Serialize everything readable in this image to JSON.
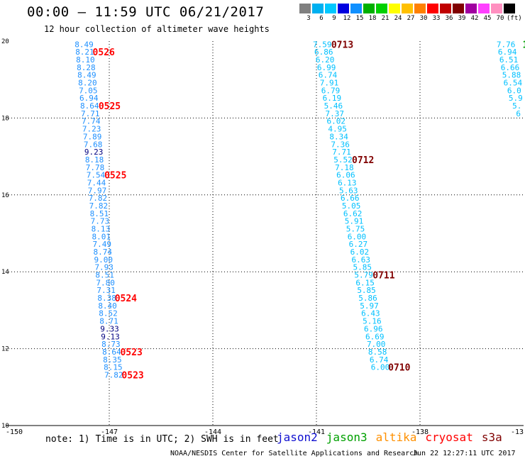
{
  "title": "00:00 – 11:59 UTC 06/21/2017",
  "subtitle": "12 hour collection of altimeter wave heights",
  "color_scale": {
    "labels": [
      "3",
      "6",
      "9",
      "12",
      "15",
      "18",
      "21",
      "24",
      "27",
      "30",
      "33",
      "36",
      "39",
      "42",
      "45",
      "70",
      "(ft)"
    ],
    "colors": [
      "#808080",
      "#00b0f0",
      "#00c8ff",
      "#0000e0",
      "#1090ff",
      "#00b000",
      "#00d000",
      "#ffff00",
      "#ffc000",
      "#ff8000",
      "#ff0000",
      "#c00000",
      "#800000",
      "#a000a0",
      "#ff40ff",
      "#ff90c0",
      "#000000"
    ]
  },
  "note": "note: 1) Time is in UTC; 2) SWH is in feet",
  "legend": [
    {
      "name": "jason2",
      "color": "#1010d0"
    },
    {
      "name": "jason3",
      "color": "#00a000"
    },
    {
      "name": "altika",
      "color": "#ff9000"
    },
    {
      "name": "cryosat",
      "color": "#ff0000"
    },
    {
      "name": "s3a",
      "color": "#800000"
    }
  ],
  "credit": "NOAA/NESDIS Center for Satellite Applications and Research",
  "timestamp": "Jun 22 12:27:11 UTC 2017",
  "map": {
    "lon_range": [
      -150,
      -135
    ],
    "lat_range": [
      10,
      20
    ],
    "lon_ticks": [
      "-150",
      "-147",
      "-144",
      "-141",
      "-138",
      "-13"
    ],
    "lat_ticks": [
      "20",
      "18",
      "16",
      "14",
      "12",
      "10"
    ],
    "grid": true
  },
  "tracks": [
    {
      "id": "track-a",
      "points": [
        {
          "lon": -147.73,
          "lat": 19.92,
          "swh": "8.49",
          "color": "#1e90ff"
        },
        {
          "lon": -147.71,
          "lat": 19.72,
          "swh": "8.21",
          "color": "#1e90ff"
        },
        {
          "lon": -147.69,
          "lat": 19.52,
          "swh": "8.10",
          "color": "#1e90ff"
        },
        {
          "lon": -147.67,
          "lat": 19.32,
          "swh": "8.28",
          "color": "#1e90ff"
        },
        {
          "lon": -147.65,
          "lat": 19.12,
          "swh": "8.49",
          "color": "#1e90ff"
        },
        {
          "lon": -147.63,
          "lat": 18.92,
          "swh": "8.20",
          "color": "#1e90ff"
        },
        {
          "lon": -147.61,
          "lat": 18.72,
          "swh": "7.05",
          "color": "#1e90ff"
        },
        {
          "lon": -147.59,
          "lat": 18.52,
          "swh": "6.94",
          "color": "#1e90ff"
        },
        {
          "lon": -147.57,
          "lat": 18.32,
          "swh": "8.64",
          "color": "#1e90ff"
        },
        {
          "lon": -147.55,
          "lat": 18.12,
          "swh": "7.71",
          "color": "#1e90ff"
        },
        {
          "lon": -147.53,
          "lat": 17.92,
          "swh": "7.74",
          "color": "#1e90ff"
        },
        {
          "lon": -147.51,
          "lat": 17.72,
          "swh": "7.23",
          "color": "#1e90ff"
        },
        {
          "lon": -147.49,
          "lat": 17.52,
          "swh": "7.89",
          "color": "#1e90ff"
        },
        {
          "lon": -147.47,
          "lat": 17.32,
          "swh": "7.68",
          "color": "#1e90ff"
        },
        {
          "lon": -147.45,
          "lat": 17.12,
          "swh": "9.23",
          "color": "#000080"
        },
        {
          "lon": -147.43,
          "lat": 16.92,
          "swh": "8.18",
          "color": "#1e90ff"
        },
        {
          "lon": -147.41,
          "lat": 16.72,
          "swh": "7.78",
          "color": "#1e90ff"
        },
        {
          "lon": -147.39,
          "lat": 16.52,
          "swh": "7.54",
          "color": "#1e90ff"
        },
        {
          "lon": -147.37,
          "lat": 16.32,
          "swh": "7.44",
          "color": "#1e90ff"
        },
        {
          "lon": -147.35,
          "lat": 16.12,
          "swh": "7.97",
          "color": "#1e90ff"
        },
        {
          "lon": -147.33,
          "lat": 15.92,
          "swh": "7.82",
          "color": "#1e90ff"
        },
        {
          "lon": -147.31,
          "lat": 15.72,
          "swh": "7.82",
          "color": "#1e90ff"
        },
        {
          "lon": -147.29,
          "lat": 15.52,
          "swh": "8.51",
          "color": "#1e90ff"
        },
        {
          "lon": -147.27,
          "lat": 15.32,
          "swh": "7.73",
          "color": "#1e90ff"
        },
        {
          "lon": -147.25,
          "lat": 15.12,
          "swh": "8.13",
          "color": "#1e90ff"
        },
        {
          "lon": -147.23,
          "lat": 14.92,
          "swh": "8.01",
          "color": "#1e90ff"
        },
        {
          "lon": -147.21,
          "lat": 14.72,
          "swh": "7.49",
          "color": "#1e90ff"
        },
        {
          "lon": -147.19,
          "lat": 14.52,
          "swh": "8.74",
          "color": "#1e90ff"
        },
        {
          "lon": -147.17,
          "lat": 14.32,
          "swh": "9.00",
          "color": "#1e90ff"
        },
        {
          "lon": -147.15,
          "lat": 14.12,
          "swh": "7.93",
          "color": "#1e90ff"
        },
        {
          "lon": -147.13,
          "lat": 13.92,
          "swh": "8.51",
          "color": "#1e90ff"
        },
        {
          "lon": -147.11,
          "lat": 13.72,
          "swh": "7.80",
          "color": "#1e90ff"
        },
        {
          "lon": -147.09,
          "lat": 13.52,
          "swh": "7.31",
          "color": "#1e90ff"
        },
        {
          "lon": -147.07,
          "lat": 13.32,
          "swh": "8.38",
          "color": "#1e90ff"
        },
        {
          "lon": -147.05,
          "lat": 13.12,
          "swh": "8.40",
          "color": "#1e90ff"
        },
        {
          "lon": -147.03,
          "lat": 12.92,
          "swh": "8.52",
          "color": "#1e90ff"
        },
        {
          "lon": -147.01,
          "lat": 12.72,
          "swh": "8.71",
          "color": "#1e90ff"
        },
        {
          "lon": -146.99,
          "lat": 12.52,
          "swh": "9.33",
          "color": "#000080"
        },
        {
          "lon": -146.97,
          "lat": 12.32,
          "swh": "9.13",
          "color": "#000080"
        },
        {
          "lon": -146.95,
          "lat": 12.12,
          "swh": "8.73",
          "color": "#1e90ff"
        },
        {
          "lon": -146.93,
          "lat": 11.92,
          "swh": "8.64",
          "color": "#1e90ff"
        },
        {
          "lon": -146.91,
          "lat": 11.72,
          "swh": "8.35",
          "color": "#1e90ff"
        },
        {
          "lon": -146.89,
          "lat": 11.52,
          "swh": "8.15",
          "color": "#1e90ff"
        },
        {
          "lon": -146.87,
          "lat": 11.32,
          "swh": "7.82",
          "color": "#1e90ff"
        }
      ],
      "times": [
        {
          "lon": -147.16,
          "lat": 19.72,
          "text": "0526",
          "color": "#ff0000"
        },
        {
          "lon": -146.99,
          "lat": 18.32,
          "text": "0525",
          "color": "#ff0000"
        },
        {
          "lon": -146.82,
          "lat": 16.52,
          "text": "0525",
          "color": "#ff0000"
        },
        {
          "lon": -146.52,
          "lat": 13.32,
          "text": "0524",
          "color": "#ff0000"
        },
        {
          "lon": -146.36,
          "lat": 11.92,
          "text": "0523",
          "color": "#ff0000"
        },
        {
          "lon": -146.32,
          "lat": 11.32,
          "text": "0523",
          "color": "#ff0000"
        }
      ]
    },
    {
      "id": "track-b",
      "points": [
        {
          "lon": -140.83,
          "lat": 19.92,
          "swh": "7.59",
          "color": "#00c0ff"
        },
        {
          "lon": -140.79,
          "lat": 19.72,
          "swh": "6.86",
          "color": "#00c0ff"
        },
        {
          "lon": -140.75,
          "lat": 19.52,
          "swh": "6.20",
          "color": "#00c0ff"
        },
        {
          "lon": -140.71,
          "lat": 19.32,
          "swh": "6.99",
          "color": "#00c0ff"
        },
        {
          "lon": -140.67,
          "lat": 19.12,
          "swh": "6.74",
          "color": "#00c0ff"
        },
        {
          "lon": -140.63,
          "lat": 18.92,
          "swh": "7.91",
          "color": "#00c0ff"
        },
        {
          "lon": -140.59,
          "lat": 18.72,
          "swh": "6.79",
          "color": "#00c0ff"
        },
        {
          "lon": -140.55,
          "lat": 18.52,
          "swh": "6.19",
          "color": "#00c0ff"
        },
        {
          "lon": -140.51,
          "lat": 18.32,
          "swh": "5.46",
          "color": "#00c0ff"
        },
        {
          "lon": -140.47,
          "lat": 18.12,
          "swh": "7.37",
          "color": "#00c0ff"
        },
        {
          "lon": -140.43,
          "lat": 17.92,
          "swh": "6.02",
          "color": "#00c0ff"
        },
        {
          "lon": -140.39,
          "lat": 17.72,
          "swh": "4.95",
          "color": "#00c0ff"
        },
        {
          "lon": -140.35,
          "lat": 17.52,
          "swh": "8.34",
          "color": "#00c0ff"
        },
        {
          "lon": -140.31,
          "lat": 17.32,
          "swh": "7.36",
          "color": "#00c0ff"
        },
        {
          "lon": -140.27,
          "lat": 17.12,
          "swh": "7.71",
          "color": "#00c0ff"
        },
        {
          "lon": -140.23,
          "lat": 16.92,
          "swh": "5.52",
          "color": "#00c0ff"
        },
        {
          "lon": -140.19,
          "lat": 16.72,
          "swh": "7.18",
          "color": "#00c0ff"
        },
        {
          "lon": -140.15,
          "lat": 16.52,
          "swh": "6.06",
          "color": "#00c0ff"
        },
        {
          "lon": -140.11,
          "lat": 16.32,
          "swh": "6.13",
          "color": "#00c0ff"
        },
        {
          "lon": -140.07,
          "lat": 16.12,
          "swh": "5.63",
          "color": "#00c0ff"
        },
        {
          "lon": -140.03,
          "lat": 15.92,
          "swh": "6.66",
          "color": "#00c0ff"
        },
        {
          "lon": -139.99,
          "lat": 15.72,
          "swh": "5.05",
          "color": "#00c0ff"
        },
        {
          "lon": -139.95,
          "lat": 15.52,
          "swh": "6.62",
          "color": "#00c0ff"
        },
        {
          "lon": -139.91,
          "lat": 15.32,
          "swh": "5.91",
          "color": "#00c0ff"
        },
        {
          "lon": -139.87,
          "lat": 15.12,
          "swh": "5.75",
          "color": "#00c0ff"
        },
        {
          "lon": -139.83,
          "lat": 14.92,
          "swh": "6.00",
          "color": "#00c0ff"
        },
        {
          "lon": -139.79,
          "lat": 14.72,
          "swh": "6.27",
          "color": "#00c0ff"
        },
        {
          "lon": -139.75,
          "lat": 14.52,
          "swh": "6.02",
          "color": "#00c0ff"
        },
        {
          "lon": -139.71,
          "lat": 14.32,
          "swh": "6.63",
          "color": "#00c0ff"
        },
        {
          "lon": -139.67,
          "lat": 14.12,
          "swh": "5.85",
          "color": "#00c0ff"
        },
        {
          "lon": -139.63,
          "lat": 13.92,
          "swh": "5.79",
          "color": "#00c0ff"
        },
        {
          "lon": -139.59,
          "lat": 13.72,
          "swh": "6.15",
          "color": "#00c0ff"
        },
        {
          "lon": -139.55,
          "lat": 13.52,
          "swh": "5.85",
          "color": "#00c0ff"
        },
        {
          "lon": -139.51,
          "lat": 13.32,
          "swh": "5.86",
          "color": "#00c0ff"
        },
        {
          "lon": -139.47,
          "lat": 13.12,
          "swh": "5.97",
          "color": "#00c0ff"
        },
        {
          "lon": -139.43,
          "lat": 12.92,
          "swh": "6.43",
          "color": "#00c0ff"
        },
        {
          "lon": -139.39,
          "lat": 12.72,
          "swh": "5.16",
          "color": "#00c0ff"
        },
        {
          "lon": -139.35,
          "lat": 12.52,
          "swh": "6.96",
          "color": "#00c0ff"
        },
        {
          "lon": -139.31,
          "lat": 12.32,
          "swh": "6.69",
          "color": "#00c0ff"
        },
        {
          "lon": -139.27,
          "lat": 12.12,
          "swh": "7.00",
          "color": "#00c0ff"
        },
        {
          "lon": -139.23,
          "lat": 11.92,
          "swh": "8.58",
          "color": "#00c0ff"
        },
        {
          "lon": -139.19,
          "lat": 11.72,
          "swh": "6.74",
          "color": "#00c0ff"
        },
        {
          "lon": -139.15,
          "lat": 11.52,
          "swh": "6.00",
          "color": "#00c0ff"
        }
      ],
      "times": [
        {
          "lon": -140.25,
          "lat": 19.92,
          "text": "0713",
          "color": "#800000"
        },
        {
          "lon": -139.65,
          "lat": 16.92,
          "text": "0712",
          "color": "#800000"
        },
        {
          "lon": -139.05,
          "lat": 13.92,
          "text": "0711",
          "color": "#800000"
        },
        {
          "lon": -138.6,
          "lat": 11.52,
          "text": "0710",
          "color": "#800000"
        }
      ]
    },
    {
      "id": "track-c",
      "points": [
        {
          "lon": -135.51,
          "lat": 19.92,
          "swh": "7.76",
          "color": "#00c0ff"
        },
        {
          "lon": -135.47,
          "lat": 19.72,
          "swh": "6.94",
          "color": "#00c0ff"
        },
        {
          "lon": -135.43,
          "lat": 19.52,
          "swh": "6.51",
          "color": "#00c0ff"
        },
        {
          "lon": -135.39,
          "lat": 19.32,
          "swh": "6.66",
          "color": "#00c0ff"
        },
        {
          "lon": -135.35,
          "lat": 19.12,
          "swh": "5.88",
          "color": "#00c0ff"
        },
        {
          "lon": -135.31,
          "lat": 18.92,
          "swh": "6.54",
          "color": "#00c0ff"
        },
        {
          "lon": -135.27,
          "lat": 18.72,
          "swh": "6.0",
          "color": "#00c0ff"
        },
        {
          "lon": -135.23,
          "lat": 18.52,
          "swh": "5.9",
          "color": "#00c0ff"
        },
        {
          "lon": -135.19,
          "lat": 18.32,
          "swh": "5.",
          "color": "#00c0ff"
        },
        {
          "lon": -135.15,
          "lat": 18.12,
          "swh": "6",
          "color": "#00c0ff"
        }
      ],
      "times": [
        {
          "lon": -134.95,
          "lat": 19.92,
          "text": "1",
          "color": "#00a000"
        }
      ]
    }
  ]
}
